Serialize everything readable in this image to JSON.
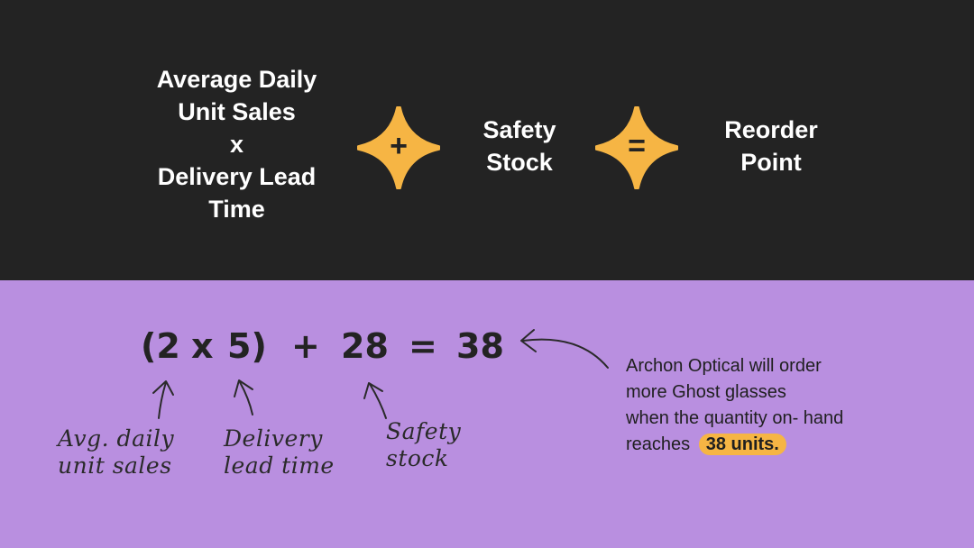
{
  "formula": {
    "term1": "Average Daily\nUnit Sales\nx\nDelivery Lead\nTime",
    "plus_symbol": "+",
    "term2": "Safety\nStock",
    "equals_symbol": "=",
    "result": "Reorder\nPoint"
  },
  "example": {
    "open_paren": "(2",
    "times": "x",
    "close_paren": "5)",
    "plus": "+",
    "safety_value": "28",
    "equals": "=",
    "result_value": "38"
  },
  "annotations": {
    "daily_sales": "Avg. daily\nunit sales",
    "lead_time": "Delivery\nlead time",
    "safety": "Safety\nstock"
  },
  "note": {
    "line1": "Archon Optical will order",
    "line2": "more Ghost glasses",
    "line3": "when the quantity on- hand",
    "line4_prefix": "reaches",
    "highlight": "38 units."
  },
  "colors": {
    "top_background": "#232323",
    "bottom_background": "#b98fe0",
    "accent": "#f6b544"
  },
  "icons": [
    "four-point-star-icon",
    "plus-icon",
    "equals-icon",
    "arrow-icon"
  ]
}
